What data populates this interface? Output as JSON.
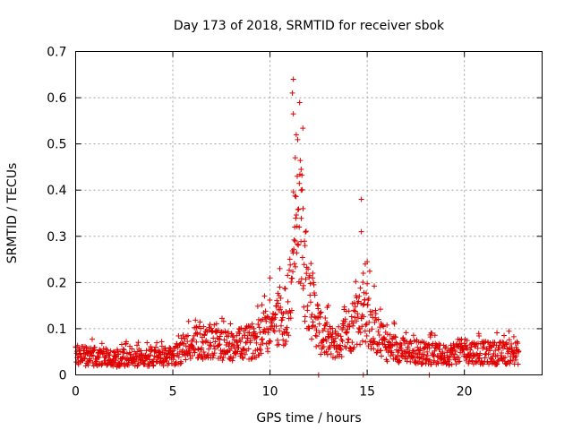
{
  "chart_data": {
    "type": "scatter",
    "title": "Day 173 of 2018, SRMTID for receiver sbok",
    "xlabel": "GPS time / hours",
    "ylabel": "SRMTID / TECUs",
    "xlim": [
      0,
      24
    ],
    "ylim": [
      0,
      0.7
    ],
    "xticks": [
      0,
      5,
      10,
      15,
      20
    ],
    "yticks": [
      0,
      0.1,
      0.2,
      0.3,
      0.4,
      0.5,
      0.6,
      0.7
    ],
    "xtick_labels": [
      "0",
      "5",
      "10",
      "15",
      "20"
    ],
    "ytick_labels": [
      "0",
      "0.1",
      "0.2",
      "0.3",
      "0.4",
      "0.5",
      "0.6",
      "0.7"
    ],
    "grid": true,
    "marker": "plus",
    "color": "#e00000",
    "series": [
      {
        "name": "SRMTID",
        "envelope_x": [
          0,
          1,
          2,
          3,
          4,
          5,
          5.5,
          6,
          6.5,
          7,
          7.5,
          8,
          8.5,
          9,
          9.5,
          10,
          10.5,
          11,
          11.2,
          11.5,
          11.8,
          12,
          12.3,
          12.6,
          13,
          13.5,
          14,
          14.5,
          14.8,
          15,
          15.3,
          15.6,
          16,
          17,
          18,
          19,
          20,
          21,
          22,
          22.8
        ],
        "envelope_y": [
          0.045,
          0.042,
          0.038,
          0.04,
          0.038,
          0.042,
          0.055,
          0.07,
          0.075,
          0.07,
          0.068,
          0.065,
          0.07,
          0.075,
          0.09,
          0.11,
          0.125,
          0.16,
          0.3,
          0.34,
          0.25,
          0.19,
          0.14,
          0.095,
          0.075,
          0.072,
          0.1,
          0.13,
          0.15,
          0.14,
          0.11,
          0.085,
          0.065,
          0.055,
          0.05,
          0.045,
          0.055,
          0.05,
          0.05,
          0.05
        ],
        "peaks": [
          {
            "x": 11.2,
            "y": 0.64
          },
          {
            "x": 11.15,
            "y": 0.61
          },
          {
            "x": 11.2,
            "y": 0.565
          },
          {
            "x": 11.35,
            "y": 0.52
          },
          {
            "x": 11.3,
            "y": 0.47
          },
          {
            "x": 11.6,
            "y": 0.445
          },
          {
            "x": 11.4,
            "y": 0.43
          },
          {
            "x": 11.6,
            "y": 0.4
          },
          {
            "x": 11.7,
            "y": 0.36
          },
          {
            "x": 11.5,
            "y": 0.32
          },
          {
            "x": 11.8,
            "y": 0.28
          },
          {
            "x": 11.3,
            "y": 0.29
          },
          {
            "x": 14.7,
            "y": 0.38
          },
          {
            "x": 14.7,
            "y": 0.31
          },
          {
            "x": 15.0,
            "y": 0.245
          },
          {
            "x": 14.9,
            "y": 0.24
          },
          {
            "x": 14.8,
            "y": 0.22
          },
          {
            "x": 10.0,
            "y": 0.21
          },
          {
            "x": 10.5,
            "y": 0.19
          },
          {
            "x": 12.2,
            "y": 0.22
          },
          {
            "x": 13.0,
            "y": 0.15
          },
          {
            "x": 18.2,
            "y": 0.0
          },
          {
            "x": 12.5,
            "y": 0.0
          },
          {
            "x": 14.8,
            "y": 0.0
          }
        ]
      }
    ]
  }
}
